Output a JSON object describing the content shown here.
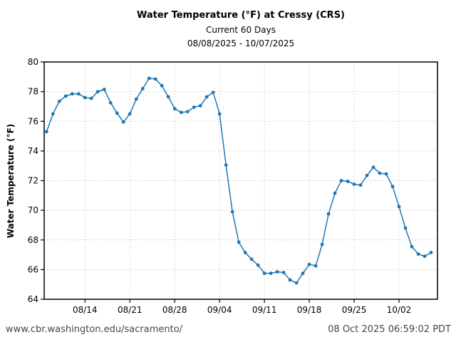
{
  "footer": {
    "url": "www.cbr.washington.edu/sacramento/",
    "timestamp": "08 Oct 2025 06:59:02 PDT"
  },
  "colors": {
    "line": "#1f77b4",
    "grid": "#b0b0b0",
    "axis": "#000000",
    "footer_text": "#3b4a51"
  },
  "chart_data": {
    "type": "line",
    "title": "Water Temperature (°F) at Cressy (CRS)",
    "subtitle": "Current 60 Days",
    "date_range": "08/08/2025 - 10/07/2025",
    "xlabel": "",
    "ylabel": "Water Temperature (°F)",
    "ylim": [
      64,
      80
    ],
    "ytick_interval": 2,
    "grid": true,
    "legend": false,
    "marker": "circle",
    "dates": [
      "08/08",
      "08/09",
      "08/10",
      "08/11",
      "08/12",
      "08/13",
      "08/14",
      "08/15",
      "08/16",
      "08/17",
      "08/18",
      "08/19",
      "08/20",
      "08/21",
      "08/22",
      "08/23",
      "08/24",
      "08/25",
      "08/26",
      "08/27",
      "08/28",
      "08/29",
      "08/30",
      "08/31",
      "09/01",
      "09/02",
      "09/03",
      "09/04",
      "09/05",
      "09/06",
      "09/07",
      "09/08",
      "09/09",
      "09/10",
      "09/11",
      "09/12",
      "09/13",
      "09/14",
      "09/15",
      "09/16",
      "09/17",
      "09/18",
      "09/19",
      "09/20",
      "09/21",
      "09/22",
      "09/23",
      "09/24",
      "09/25",
      "09/26",
      "09/27",
      "09/28",
      "09/29",
      "09/30",
      "10/01",
      "10/02",
      "10/03",
      "10/04",
      "10/05",
      "10/06",
      "10/07"
    ],
    "values": [
      75.3,
      76.5,
      77.35,
      77.7,
      77.85,
      77.85,
      77.6,
      77.55,
      78.0,
      78.15,
      77.25,
      76.55,
      75.95,
      76.5,
      77.5,
      78.2,
      78.9,
      78.85,
      78.4,
      77.65,
      76.85,
      76.6,
      76.65,
      76.95,
      77.05,
      77.65,
      77.95,
      76.5,
      73.05,
      69.9,
      67.85,
      67.15,
      66.7,
      66.3,
      65.75,
      65.75,
      65.85,
      65.8,
      65.3,
      65.1,
      65.75,
      66.35,
      66.25,
      67.7,
      69.75,
      71.15,
      72.0,
      71.95,
      71.75,
      71.7,
      72.35,
      72.9,
      72.5,
      72.45,
      71.6,
      70.25,
      68.8,
      67.55,
      67.05,
      66.9,
      67.15
    ],
    "xticks": [
      {
        "day": 6,
        "label": "08/14"
      },
      {
        "day": 13,
        "label": "08/21"
      },
      {
        "day": 20,
        "label": "08/28"
      },
      {
        "day": 27,
        "label": "09/04"
      },
      {
        "day": 34,
        "label": "09/11"
      },
      {
        "day": 41,
        "label": "09/18"
      },
      {
        "day": 48,
        "label": "09/25"
      },
      {
        "day": 55,
        "label": "10/02"
      }
    ]
  }
}
